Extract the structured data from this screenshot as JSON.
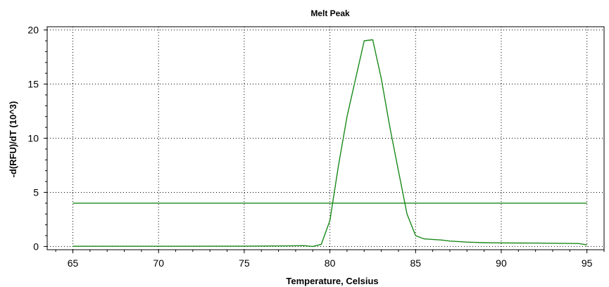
{
  "chart_data": {
    "type": "line",
    "title": "Melt Peak",
    "xlabel": "Temperature, Celsius",
    "ylabel": "-d(RFU)/dT (10^3)",
    "xlim": [
      63.5,
      96
    ],
    "ylim": [
      -0.3,
      20.3
    ],
    "xticks": [
      65,
      70,
      75,
      80,
      85,
      90,
      95
    ],
    "yticks": [
      0,
      5,
      10,
      15,
      20
    ],
    "grid": true,
    "series": [
      {
        "color": "#1a8a1a",
        "x": [
          65,
          70,
          75,
          77.5,
          78.5,
          79,
          79.5,
          80,
          80.5,
          81,
          81.5,
          82,
          82.5,
          83,
          83.5,
          84,
          84.5,
          85,
          85.5,
          86,
          86.5,
          87,
          88,
          89,
          90,
          91,
          92,
          93,
          94,
          94.5,
          95
        ],
        "y": [
          0.02,
          0.02,
          0.03,
          0.05,
          0.08,
          0.0,
          0.2,
          2.4,
          7.5,
          12.0,
          15.5,
          19.0,
          19.1,
          15.5,
          11.0,
          7.0,
          3.0,
          1.0,
          0.7,
          0.65,
          0.6,
          0.5,
          0.4,
          0.35,
          0.33,
          0.32,
          0.31,
          0.3,
          0.28,
          0.27,
          0.15
        ]
      },
      {
        "color": "#1a8a1a",
        "x": [
          65,
          95
        ],
        "y": [
          4.0,
          4.0
        ]
      }
    ]
  }
}
